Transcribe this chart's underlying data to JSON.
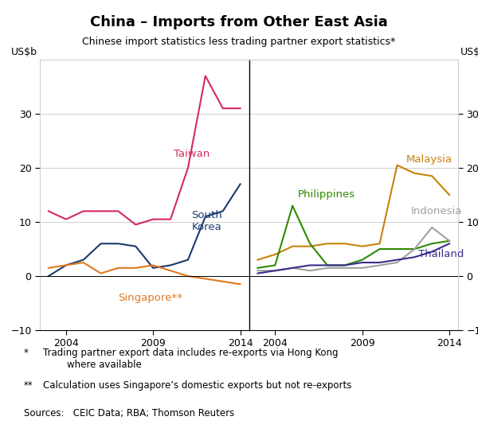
{
  "title": "China – Imports from Other East Asia",
  "subtitle": "Chinese import statistics less trading partner export statistics*",
  "ylabel": "US$b",
  "ylim": [
    -10,
    40
  ],
  "yticks": [
    -10,
    0,
    10,
    20,
    30
  ],
  "years": [
    2003,
    2004,
    2005,
    2006,
    2007,
    2008,
    2009,
    2010,
    2011,
    2012,
    2013,
    2014
  ],
  "taiwan": [
    12,
    10.5,
    12,
    12,
    12,
    9.5,
    10.5,
    10.5,
    20,
    37,
    31,
    31
  ],
  "south_korea": [
    0,
    2,
    3,
    6,
    6,
    5.5,
    1.5,
    2,
    3,
    11,
    12,
    17
  ],
  "singapore": [
    1.5,
    2,
    2.5,
    0.5,
    1.5,
    1.5,
    2,
    1,
    0,
    -0.5,
    -1,
    -1.5
  ],
  "malaysia": [
    3,
    4,
    5.5,
    5.5,
    6,
    6,
    5.5,
    6,
    20.5,
    19,
    18.5,
    15
  ],
  "philippines": [
    1.5,
    2,
    13,
    6,
    2,
    2,
    3,
    5,
    5,
    5,
    6,
    6.5
  ],
  "indonesia": [
    1,
    1,
    1.5,
    1,
    1.5,
    1.5,
    1.5,
    2,
    2.5,
    5,
    9,
    6.5
  ],
  "thailand": [
    0.5,
    1,
    1.5,
    2,
    2,
    2,
    2.5,
    2.5,
    3,
    3.5,
    4.5,
    6
  ],
  "taiwan_color": "#d42a5a",
  "south_korea_color": "#1a3a6e",
  "singapore_color": "#e07820",
  "malaysia_color": "#c8820a",
  "philippines_color": "#2e8b00",
  "indonesia_color": "#a0a0a0",
  "thailand_color": "#3a2d8c",
  "grid_color": "#d0d0d0",
  "footnote1_bullet": "*",
  "footnote1_text": "Trading partner export data includes re-exports via Hong Kong\n        where available",
  "footnote2_bullet": "**",
  "footnote2_text": "Calculation uses Singapore’s domestic exports but not re-exports",
  "sources": "Sources:   CEIC Data; RBA; Thomson Reuters"
}
